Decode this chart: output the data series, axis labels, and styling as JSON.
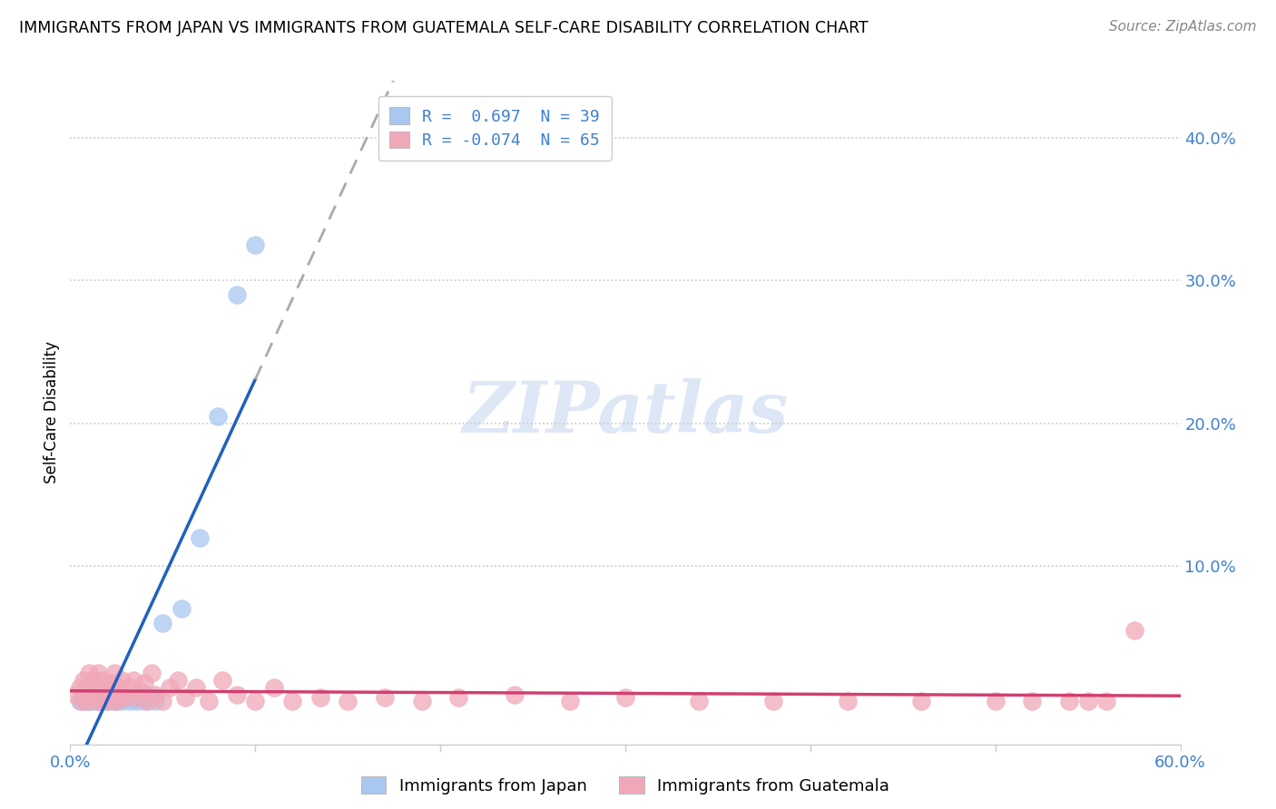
{
  "title": "IMMIGRANTS FROM JAPAN VS IMMIGRANTS FROM GUATEMALA SELF-CARE DISABILITY CORRELATION CHART",
  "source": "Source: ZipAtlas.com",
  "ylabel": "Self-Care Disability",
  "xlim": [
    0.0,
    0.6
  ],
  "ylim": [
    -0.025,
    0.44
  ],
  "xticks": [
    0.0,
    0.6
  ],
  "yticks": [
    0.1,
    0.2,
    0.3,
    0.4
  ],
  "grid_color": "#c8c8c8",
  "bg_color": "#ffffff",
  "japan_color": "#a8c8f0",
  "japan_line_color": "#2060c0",
  "japan_R": 0.697,
  "japan_N": 39,
  "guatemala_color": "#f0a8b8",
  "guatemala_line_color": "#d04070",
  "guatemala_R": -0.074,
  "guatemala_N": 65,
  "japan_x": [
    0.005,
    0.007,
    0.008,
    0.009,
    0.01,
    0.01,
    0.011,
    0.012,
    0.013,
    0.014,
    0.015,
    0.015,
    0.016,
    0.017,
    0.018,
    0.019,
    0.02,
    0.021,
    0.022,
    0.023,
    0.024,
    0.025,
    0.026,
    0.027,
    0.028,
    0.03,
    0.032,
    0.034,
    0.036,
    0.038,
    0.04,
    0.043,
    0.046,
    0.05,
    0.06,
    0.07,
    0.08,
    0.09,
    0.1
  ],
  "japan_y": [
    0.005,
    0.01,
    0.005,
    0.015,
    0.005,
    0.01,
    0.005,
    0.008,
    0.01,
    0.005,
    0.006,
    0.01,
    0.008,
    0.005,
    0.012,
    0.007,
    0.005,
    0.008,
    0.01,
    0.005,
    0.007,
    0.005,
    0.008,
    0.01,
    0.005,
    0.007,
    0.005,
    0.008,
    0.005,
    0.01,
    0.005,
    0.008,
    0.005,
    0.06,
    0.07,
    0.12,
    0.205,
    0.29,
    0.325
  ],
  "guatemala_x": [
    0.003,
    0.005,
    0.006,
    0.007,
    0.008,
    0.009,
    0.01,
    0.01,
    0.011,
    0.012,
    0.013,
    0.014,
    0.015,
    0.015,
    0.016,
    0.017,
    0.018,
    0.019,
    0.02,
    0.021,
    0.022,
    0.023,
    0.024,
    0.025,
    0.026,
    0.027,
    0.028,
    0.03,
    0.032,
    0.034,
    0.036,
    0.038,
    0.04,
    0.042,
    0.044,
    0.046,
    0.05,
    0.054,
    0.058,
    0.062,
    0.068,
    0.075,
    0.082,
    0.09,
    0.1,
    0.11,
    0.12,
    0.135,
    0.15,
    0.17,
    0.19,
    0.21,
    0.24,
    0.27,
    0.3,
    0.34,
    0.38,
    0.42,
    0.46,
    0.5,
    0.52,
    0.54,
    0.55,
    0.56,
    0.575
  ],
  "guatemala_y": [
    0.01,
    0.015,
    0.005,
    0.02,
    0.01,
    0.005,
    0.015,
    0.025,
    0.01,
    0.02,
    0.008,
    0.015,
    0.005,
    0.025,
    0.012,
    0.02,
    0.008,
    0.015,
    0.005,
    0.012,
    0.018,
    0.008,
    0.025,
    0.005,
    0.015,
    0.01,
    0.02,
    0.008,
    0.015,
    0.02,
    0.008,
    0.012,
    0.018,
    0.005,
    0.025,
    0.01,
    0.005,
    0.015,
    0.02,
    0.008,
    0.015,
    0.005,
    0.02,
    0.01,
    0.005,
    0.015,
    0.005,
    0.008,
    0.005,
    0.008,
    0.005,
    0.008,
    0.01,
    0.005,
    0.008,
    0.005,
    0.005,
    0.005,
    0.005,
    0.005,
    0.005,
    0.005,
    0.005,
    0.005,
    0.055
  ],
  "watermark": "ZIPatlas",
  "watermark_color": "#c8d8f0",
  "legend_R_label1": "R =  0.697  N = 39",
  "legend_R_label2": "R = -0.074  N = 65"
}
